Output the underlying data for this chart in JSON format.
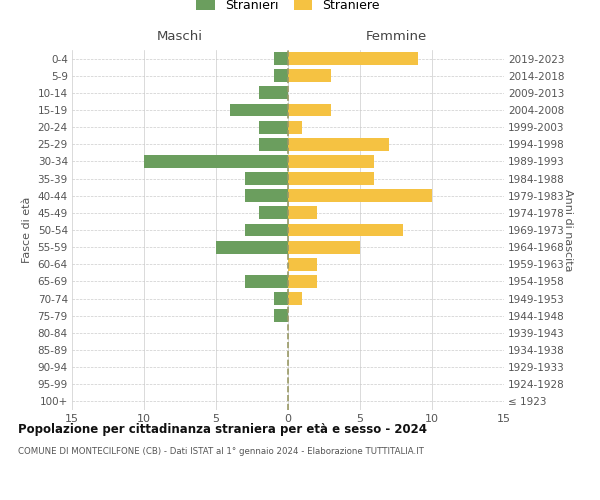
{
  "age_groups": [
    "100+",
    "95-99",
    "90-94",
    "85-89",
    "80-84",
    "75-79",
    "70-74",
    "65-69",
    "60-64",
    "55-59",
    "50-54",
    "45-49",
    "40-44",
    "35-39",
    "30-34",
    "25-29",
    "20-24",
    "15-19",
    "10-14",
    "5-9",
    "0-4"
  ],
  "birth_years": [
    "≤ 1923",
    "1924-1928",
    "1929-1933",
    "1934-1938",
    "1939-1943",
    "1944-1948",
    "1949-1953",
    "1954-1958",
    "1959-1963",
    "1964-1968",
    "1969-1973",
    "1974-1978",
    "1979-1983",
    "1984-1988",
    "1989-1993",
    "1994-1998",
    "1999-2003",
    "2004-2008",
    "2009-2013",
    "2014-2018",
    "2019-2023"
  ],
  "males": [
    0,
    0,
    0,
    0,
    0,
    1,
    1,
    3,
    0,
    5,
    3,
    2,
    3,
    3,
    10,
    2,
    2,
    4,
    2,
    1,
    1
  ],
  "females": [
    0,
    0,
    0,
    0,
    0,
    0,
    1,
    2,
    2,
    5,
    8,
    2,
    10,
    6,
    6,
    7,
    1,
    3,
    0,
    3,
    9
  ],
  "male_color": "#6b9e5e",
  "female_color": "#f5c242",
  "male_label": "Stranieri",
  "female_label": "Straniere",
  "title": "Popolazione per cittadinanza straniera per età e sesso - 2024",
  "subtitle": "COMUNE DI MONTECILFONE (CB) - Dati ISTAT al 1° gennaio 2024 - Elaborazione TUTTITALIA.IT",
  "xlabel_left": "Maschi",
  "xlabel_right": "Femmine",
  "ylabel_left": "Fasce di età",
  "ylabel_right": "Anni di nascita",
  "xlim": 15,
  "background_color": "#ffffff",
  "grid_color": "#cccccc",
  "dashed_line_color": "#999966"
}
